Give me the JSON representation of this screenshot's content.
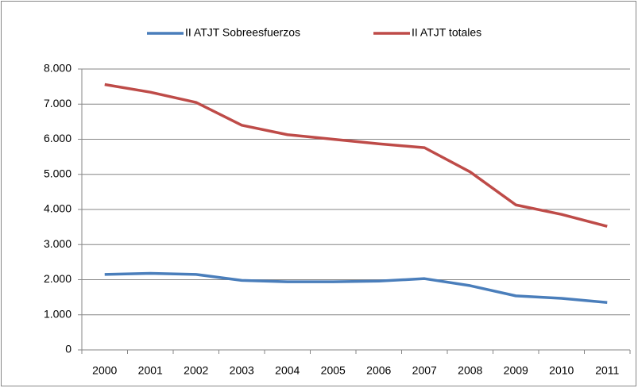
{
  "chart_data": {
    "type": "line",
    "categories": [
      "2000",
      "2001",
      "2002",
      "2003",
      "2004",
      "2005",
      "2006",
      "2007",
      "2008",
      "2009",
      "2010",
      "2011"
    ],
    "series": [
      {
        "name": "II ATJT Sobreesfuerzos",
        "color": "#4a7ebb",
        "values": [
          2150,
          2180,
          2150,
          1980,
          1940,
          1940,
          1960,
          2030,
          1830,
          1540,
          1470,
          1350
        ]
      },
      {
        "name": "II ATJT totales",
        "color": "#be4b48",
        "values": [
          7560,
          7340,
          7050,
          6400,
          6130,
          6000,
          5870,
          5760,
          5070,
          4130,
          3860,
          3520
        ]
      }
    ],
    "ylim": [
      0,
      8000
    ],
    "yticks": [
      0,
      {
        "value": 1000,
        "label": "1.000"
      },
      {
        "value": 2000,
        "label": "2.000"
      },
      {
        "value": 3000,
        "label": "3.000"
      },
      {
        "value": 4000,
        "label": "4.000"
      },
      {
        "value": 5000,
        "label": "5.000"
      },
      {
        "value": 6000,
        "label": "6.000"
      },
      {
        "value": 7000,
        "label": "7.000"
      },
      {
        "value": 8000,
        "label": "8.000"
      }
    ],
    "grid": true,
    "legend": "top"
  }
}
